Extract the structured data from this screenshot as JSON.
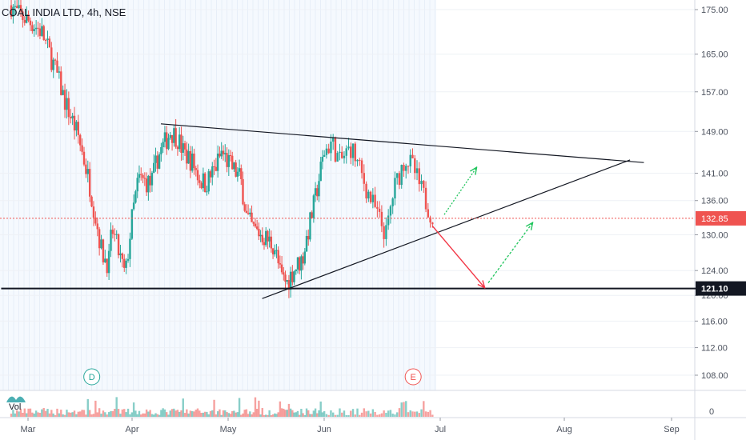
{
  "header": {
    "symbol_title": "COAL INDIA LTD, 4h, NSE"
  },
  "volume_pane": {
    "label": "Vol"
  },
  "colors": {
    "up": "#26a69a",
    "down": "#ef5350",
    "current_price_line": "#ef5350",
    "current_price_badge": "#ef5350",
    "support_badge": "#131722",
    "trendline": "#131722",
    "arrow_red": "#f23645",
    "arrow_green": "#22c55e",
    "grid": "#e7eef8",
    "highlight_band": "#dbe8fb",
    "event_dividend": "#26a69a",
    "event_earnings": "#ef5350"
  },
  "markers": {
    "dividend": "D",
    "earnings": "E"
  },
  "chart_data": {
    "type": "candlestick",
    "title": "COAL INDIA LTD, 4h, NSE",
    "x_tick_labels": [
      "Mar",
      "Apr",
      "May",
      "Jun",
      "Jul",
      "Aug",
      "Sep"
    ],
    "y_tick_labels": [
      "175.00",
      "165.00",
      "157.00",
      "149.00",
      "141.00",
      "136.00",
      "130.00",
      "124.00",
      "120.00",
      "116.00",
      "112.00",
      "108.00"
    ],
    "volume_tick_label": "0",
    "y_scale": "log",
    "ylim": [
      104,
      178
    ],
    "current_price": 132.85,
    "horizontal_level": 121.1,
    "grid": true,
    "close_path": [
      [
        "2020-02-25",
        176
      ],
      [
        "2020-02-27",
        174
      ],
      [
        "2020-03-02",
        172
      ],
      [
        "2020-03-05",
        170
      ],
      [
        "2020-03-09",
        162
      ],
      [
        "2020-03-12",
        155
      ],
      [
        "2020-03-16",
        148
      ],
      [
        "2020-03-19",
        140
      ],
      [
        "2020-03-23",
        127
      ],
      [
        "2020-03-25",
        125
      ],
      [
        "2020-03-26",
        131
      ],
      [
        "2020-03-30",
        123
      ],
      [
        "2020-04-01",
        133
      ],
      [
        "2020-04-03",
        140
      ],
      [
        "2020-04-07",
        139
      ],
      [
        "2020-04-09",
        144
      ],
      [
        "2020-04-13",
        149
      ],
      [
        "2020-04-15",
        148
      ],
      [
        "2020-04-17",
        145
      ],
      [
        "2020-04-20",
        143
      ],
      [
        "2020-04-22",
        140
      ],
      [
        "2020-04-24",
        139
      ],
      [
        "2020-04-27",
        142
      ],
      [
        "2020-04-29",
        145
      ],
      [
        "2020-05-01",
        143
      ],
      [
        "2020-05-05",
        140
      ],
      [
        "2020-05-07",
        133
      ],
      [
        "2020-05-09",
        131
      ],
      [
        "2020-05-12",
        130
      ],
      [
        "2020-05-14",
        129
      ],
      [
        "2020-05-16",
        128
      ],
      [
        "2020-05-18",
        123
      ],
      [
        "2020-05-20",
        122
      ],
      [
        "2020-05-22",
        124
      ],
      [
        "2020-05-25",
        126
      ],
      [
        "2020-05-27",
        131
      ],
      [
        "2020-05-29",
        136
      ],
      [
        "2020-06-01",
        145
      ],
      [
        "2020-06-03",
        147
      ],
      [
        "2020-06-05",
        143
      ],
      [
        "2020-06-08",
        146
      ],
      [
        "2020-06-10",
        142
      ],
      [
        "2020-06-12",
        138
      ],
      [
        "2020-06-15",
        133
      ],
      [
        "2020-06-17",
        130
      ],
      [
        "2020-06-19",
        138
      ],
      [
        "2020-06-22",
        144
      ],
      [
        "2020-06-24",
        142
      ],
      [
        "2020-06-26",
        138
      ],
      [
        "2020-06-29",
        133
      ]
    ],
    "trendlines": [
      {
        "name": "upper",
        "from": [
          "2020-04-10",
          150.5
        ],
        "to": [
          "2020-08-24",
          143.0
        ]
      },
      {
        "name": "lower",
        "from": [
          "2020-05-12",
          119.5
        ],
        "to": [
          "2020-08-20",
          143.5
        ]
      },
      {
        "name": "support",
        "from": [
          "2020-02-22",
          121.1
        ],
        "to": [
          "2020-09-12",
          121.1
        ]
      }
    ],
    "annotations": {
      "red_arrow": {
        "from": [
          "2020-06-29",
          131.5
        ],
        "to": [
          "2020-07-12",
          121.3
        ]
      },
      "green_arrow_up_1": {
        "from": [
          "2020-07-02",
          133.5
        ],
        "to": [
          "2020-07-10",
          142
        ]
      },
      "green_arrow_up_2": {
        "from": [
          "2020-07-13",
          122
        ],
        "to": [
          "2020-07-24",
          132
        ]
      }
    }
  }
}
